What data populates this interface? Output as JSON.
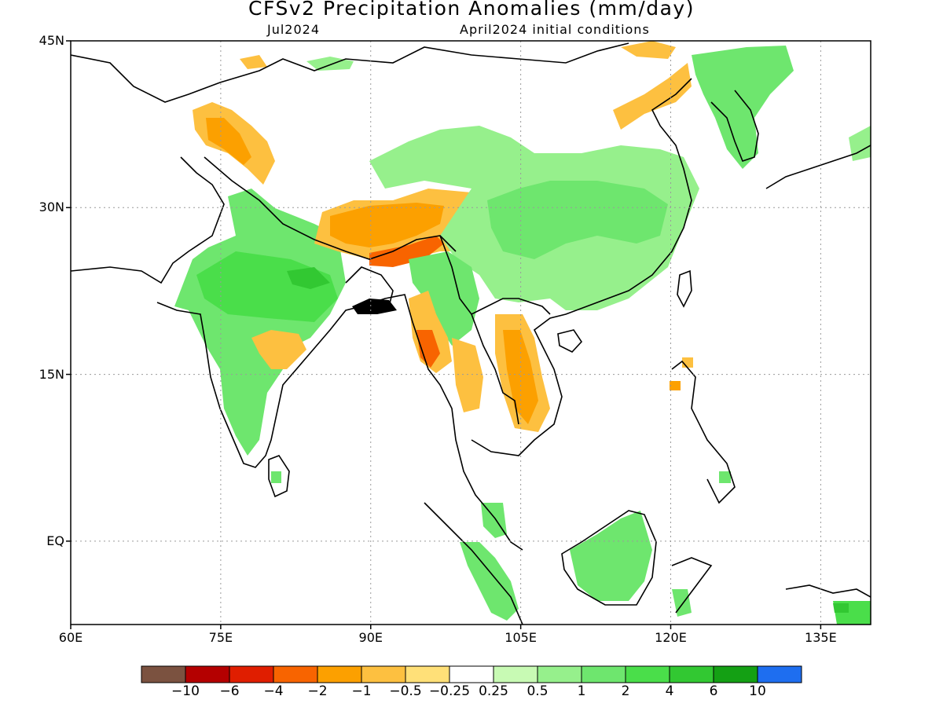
{
  "title": "CFSv2 Precipitation Anomalies (mm/day)",
  "subtitle_left": "Jul2024",
  "subtitle_right": "April2024 initial conditions",
  "lat_labels": [
    {
      "text": "45N",
      "lat": 45
    },
    {
      "text": "30N",
      "lat": 30
    },
    {
      "text": "15N",
      "lat": 15
    },
    {
      "text": "EQ",
      "lat": 0
    }
  ],
  "lon_labels": [
    {
      "text": "60E",
      "lon": 60
    },
    {
      "text": "75E",
      "lon": 75
    },
    {
      "text": "90E",
      "lon": 90
    },
    {
      "text": "105E",
      "lon": 105
    },
    {
      "text": "120E",
      "lon": 120
    },
    {
      "text": "135E",
      "lon": 135
    }
  ],
  "colorbar": {
    "colors": [
      "#7b5240",
      "#b40000",
      "#e01e00",
      "#f86400",
      "#fca000",
      "#fdc040",
      "#ffe078",
      "#ffffff",
      "#c8fab4",
      "#96f08c",
      "#6ee66e",
      "#4ade4a",
      "#32c832",
      "#14a014",
      "#1e6ef0"
    ],
    "labels": [
      "−10",
      "−6",
      "−4",
      "−2",
      "−1",
      "−0.5",
      "−0.25",
      "0.25",
      "0.5",
      "1",
      "2",
      "4",
      "6",
      "10"
    ]
  },
  "legend_colors": {
    "wet_light": "#96f08c",
    "wet": "#6ee66e",
    "wet_strong": "#4ade4a",
    "wet_vstrong": "#32c832",
    "dry_light": "#ffe078",
    "dry": "#fdc040",
    "dry_mod": "#fca000",
    "dry_strong": "#f86400"
  }
}
